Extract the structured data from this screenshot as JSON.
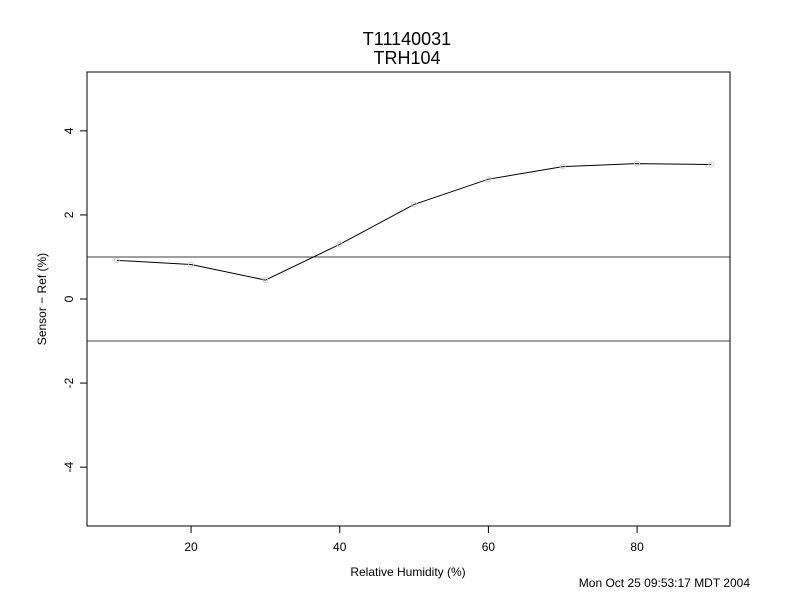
{
  "chart_data": {
    "type": "line",
    "title": "T11140031",
    "subtitle": "TRH104",
    "xlabel": "Relative Humidity (%)",
    "ylabel": "Sensor − Ref (%)",
    "xlim": [
      6,
      92.5
    ],
    "ylim": [
      -5.4,
      5.4
    ],
    "x_ticks": [
      20,
      40,
      60,
      80
    ],
    "y_ticks": [
      -4,
      -2,
      0,
      2,
      4
    ],
    "grid": false,
    "series": [
      {
        "x": [
          10,
          20,
          30,
          40,
          50,
          60,
          70,
          80,
          90
        ],
        "y": [
          0.92,
          0.82,
          0.45,
          1.3,
          2.25,
          2.85,
          3.15,
          3.22,
          3.2
        ]
      }
    ],
    "reference_lines": [
      1,
      -1
    ]
  },
  "timestamp": "Mon Oct 25 09:53:17 MDT 2004",
  "colors": {
    "line": "#000000",
    "marker": "#cccccc",
    "reference": "#000000"
  }
}
